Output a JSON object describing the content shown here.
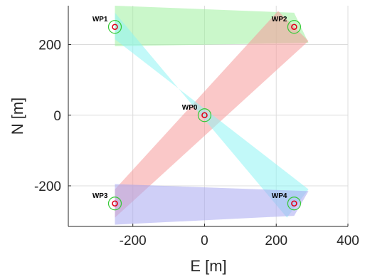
{
  "chart_data": {
    "type": "scatter",
    "title": "",
    "xlabel": "E [m]",
    "ylabel": "N [m]",
    "xlim": [
      -380,
      400
    ],
    "ylim": [
      -315,
      310
    ],
    "grid": true,
    "x_ticks": [
      -200,
      0,
      200,
      400
    ],
    "y_ticks": [
      -200,
      0,
      200
    ],
    "waypoints": [
      {
        "label": "WP0",
        "x": 0,
        "y": 0
      },
      {
        "label": "WP1",
        "x": -250,
        "y": 250
      },
      {
        "label": "WP2",
        "x": 250,
        "y": 250
      },
      {
        "label": "WP3",
        "x": -250,
        "y": -250
      },
      {
        "label": "WP4",
        "x": 250,
        "y": -250
      }
    ],
    "regions": [
      {
        "name": "WP1-WP2",
        "color": "#9ef09e",
        "polygon": [
          [
            -250,
            310
          ],
          [
            -250,
            195
          ],
          [
            290,
            205
          ],
          [
            250,
            290
          ]
        ]
      },
      {
        "name": "WP2-WP3",
        "color": "#f59a9a",
        "polygon": [
          [
            205,
            295
          ],
          [
            290,
            210
          ],
          [
            -250,
            -290
          ],
          [
            -250,
            -210
          ]
        ]
      },
      {
        "name": "WP1-WP4",
        "color": "#90f4f4",
        "polygon": [
          [
            -250,
            290
          ],
          [
            -250,
            215
          ],
          [
            290,
            -210
          ],
          [
            230,
            -290
          ]
        ]
      },
      {
        "name": "WP3-WP4",
        "color": "#a8a8f0",
        "polygon": [
          [
            -250,
            -195
          ],
          [
            -250,
            -310
          ],
          [
            250,
            -285
          ],
          [
            290,
            -215
          ]
        ]
      }
    ],
    "inner_marker_color": "#e0001a",
    "outer_marker_color": "#34c934"
  }
}
